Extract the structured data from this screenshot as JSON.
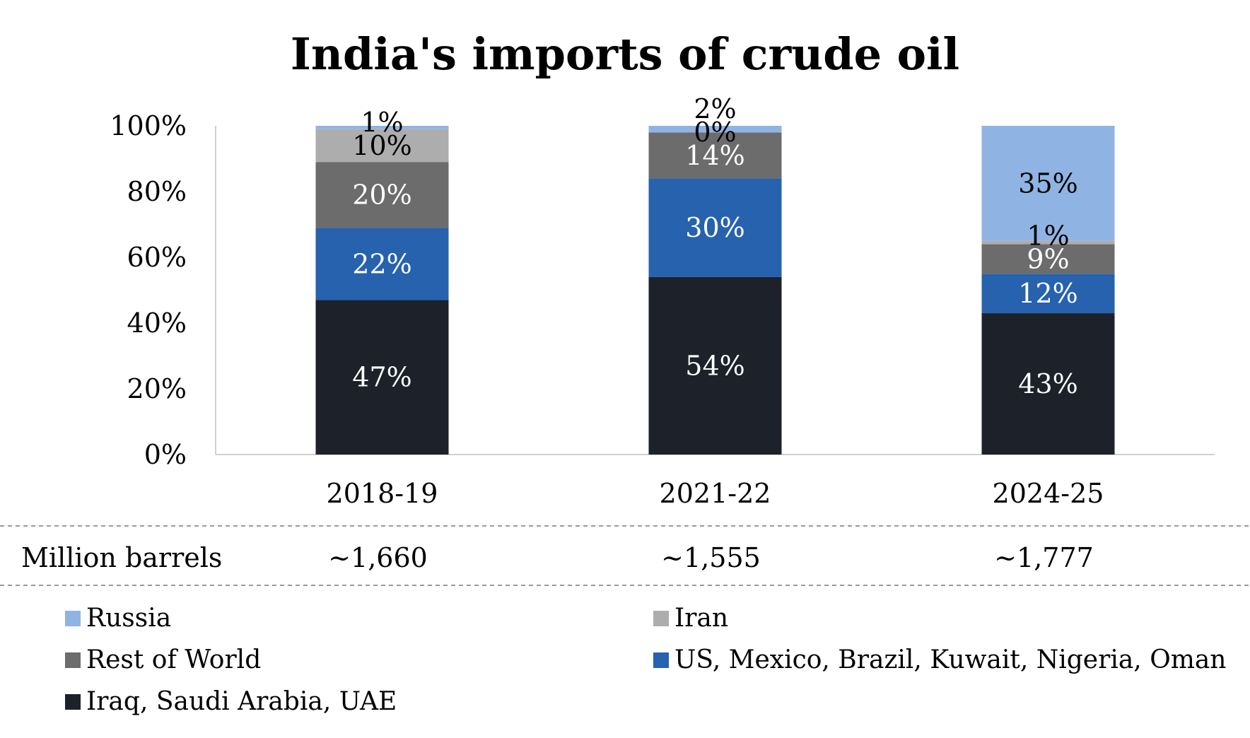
{
  "chart_data": {
    "type": "bar",
    "stacked": true,
    "percent": true,
    "title": "India's imports of crude oil",
    "categories": [
      "2018-19",
      "2021-22",
      "2024-25"
    ],
    "ylim": [
      0,
      100
    ],
    "yticks": [
      "0%",
      "20%",
      "40%",
      "60%",
      "80%",
      "100%"
    ],
    "series": [
      {
        "name": "Iraq, Saudi Arabia, UAE",
        "color": "#1c212a",
        "label_color": "#ffffff",
        "values": [
          47,
          54,
          43
        ],
        "labels": [
          "47%",
          "54%",
          "43%"
        ]
      },
      {
        "name": "US, Mexico, Brazil, Kuwait, Nigeria, Oman",
        "color": "#2662ad",
        "label_color": "#ffffff",
        "values": [
          22,
          30,
          12
        ],
        "labels": [
          "22%",
          "30%",
          "12%"
        ]
      },
      {
        "name": "Rest of World",
        "color": "#6c6c6c",
        "label_color": "#ffffff",
        "values": [
          20,
          14,
          9
        ],
        "labels": [
          "20%",
          "14%",
          "9%"
        ]
      },
      {
        "name": "Iran",
        "color": "#adadad",
        "label_color": "#000000",
        "values": [
          10,
          0,
          1
        ],
        "labels": [
          "10%",
          "0%",
          "1%"
        ]
      },
      {
        "name": "Russia",
        "color": "#8fb4e3",
        "label_color": "#000000",
        "values": [
          1,
          2,
          35
        ],
        "labels": [
          "1%",
          "2%",
          "35%"
        ]
      }
    ],
    "grid": false
  },
  "table": {
    "row_label": "Million barrels",
    "values": [
      "~1,660",
      "~1,555",
      "~1,777"
    ]
  },
  "legend": [
    {
      "label": "Russia",
      "color": "#8fb4e3"
    },
    {
      "label": "Iran",
      "color": "#adadad"
    },
    {
      "label": "Rest of World",
      "color": "#6c6c6c"
    },
    {
      "label": "US, Mexico, Brazil, Kuwait, Nigeria, Oman",
      "color": "#2662ad"
    },
    {
      "label": "Iraq, Saudi Arabia, UAE",
      "color": "#1c212a"
    }
  ]
}
